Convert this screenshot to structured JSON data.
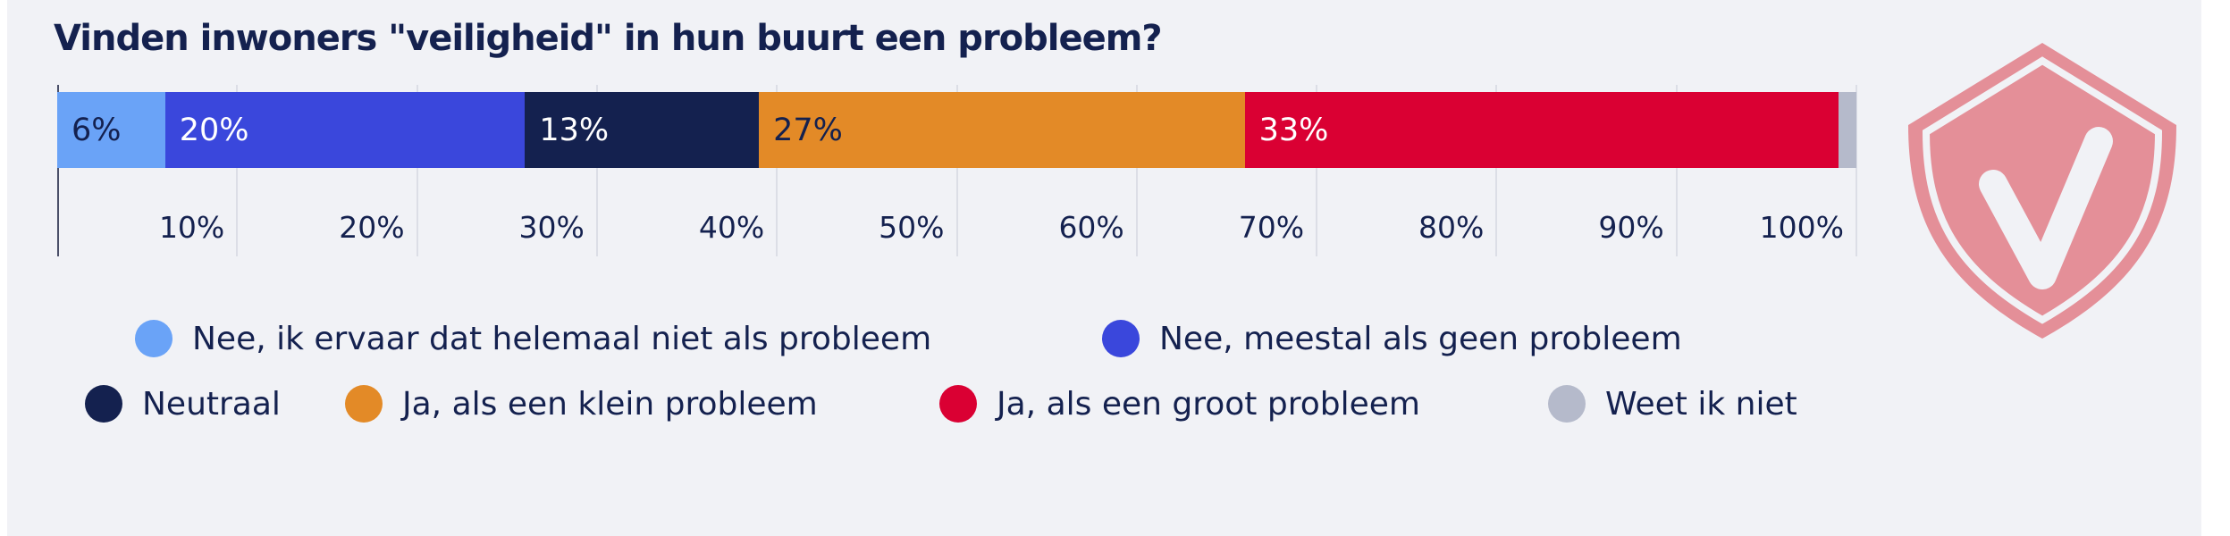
{
  "chart_data": {
    "type": "bar",
    "orientation": "horizontal-stacked",
    "title": "Vinden inwoners \"veiligheid\" in hun buurt een probleem?",
    "xlim": [
      0,
      100
    ],
    "x_ticks": [
      "10%",
      "20%",
      "30%",
      "40%",
      "50%",
      "60%",
      "70%",
      "80%",
      "90%",
      "100%"
    ],
    "grid": true,
    "legend_placement": "bottom",
    "series": [
      {
        "name": "Nee, ik ervaar dat helemaal niet als probleem",
        "value": 6,
        "label": "6%",
        "color": "#6aa3f7",
        "label_color": "#14214f"
      },
      {
        "name": "Nee, meestal als geen probleem",
        "value": 20,
        "label": "20%",
        "color": "#3a47dc",
        "label_color": "#ffffff"
      },
      {
        "name": "Neutraal",
        "value": 13,
        "label": "13%",
        "color": "#14214f",
        "label_color": "#ffffff"
      },
      {
        "name": "Ja, als een klein probleem",
        "value": 27,
        "label": "27%",
        "color": "#e38a27",
        "label_color": "#14214f"
      },
      {
        "name": "Ja, als een groot probleem",
        "value": 33,
        "label": "33%",
        "color": "#da0033",
        "label_color": "#ffffff"
      },
      {
        "name": "Weet ik niet",
        "value": 1,
        "label": "",
        "color": "#b5bacb",
        "label_color": "#14214f"
      }
    ]
  },
  "decoration": {
    "icon": "shield-check-icon",
    "color": "#e48f98"
  }
}
